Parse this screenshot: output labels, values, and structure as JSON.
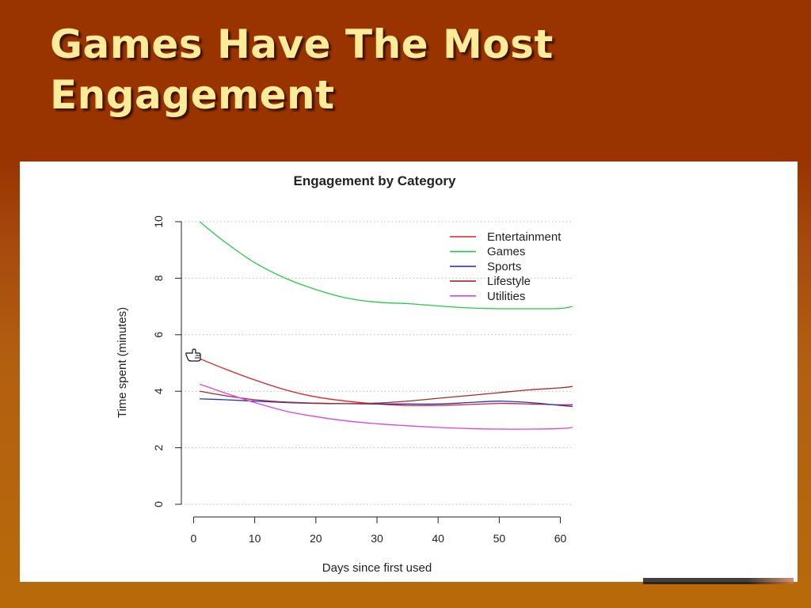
{
  "slide": {
    "title_line1": "Games Have The Most",
    "title_line2": "Engagement"
  },
  "colors": {
    "background": "#993300",
    "title": "#ffeb99",
    "panel": "#ffffff"
  },
  "chart_data": {
    "type": "line",
    "title": "Engagement by Category",
    "xlabel": "Days since first used",
    "ylabel": "Time spent (minutes)",
    "xlim": [
      -2,
      62
    ],
    "ylim": [
      0,
      10
    ],
    "xticks": [
      0,
      10,
      20,
      30,
      40,
      50,
      60
    ],
    "yticks": [
      0,
      2,
      4,
      6,
      8,
      10
    ],
    "grid": "horizontal dotted",
    "legend_position": "top-right",
    "x": [
      1,
      5,
      10,
      15,
      20,
      25,
      30,
      35,
      40,
      45,
      50,
      55,
      60,
      62
    ],
    "series": [
      {
        "name": "Entertainment",
        "color": "#dd2222",
        "values": [
          5.15,
          4.8,
          4.4,
          4.05,
          3.8,
          3.65,
          3.55,
          3.5,
          3.5,
          3.53,
          3.57,
          3.55,
          3.52,
          3.52
        ]
      },
      {
        "name": "Games",
        "color": "#22cc44",
        "values": [
          10.0,
          9.3,
          8.55,
          8.0,
          7.6,
          7.3,
          7.15,
          7.1,
          7.02,
          6.95,
          6.92,
          6.92,
          6.93,
          7.0
        ]
      },
      {
        "name": "Sports",
        "color": "#2233cc",
        "values": [
          3.73,
          3.7,
          3.65,
          3.6,
          3.57,
          3.56,
          3.55,
          3.55,
          3.55,
          3.6,
          3.65,
          3.6,
          3.5,
          3.46
        ]
      },
      {
        "name": "Lifestyle",
        "color": "#a52a2a",
        "values": [
          4.0,
          3.85,
          3.7,
          3.62,
          3.58,
          3.56,
          3.58,
          3.65,
          3.75,
          3.85,
          3.95,
          4.05,
          4.12,
          4.17
        ]
      },
      {
        "name": "Utilities",
        "color": "#dd44dd",
        "values": [
          4.25,
          3.95,
          3.6,
          3.3,
          3.1,
          2.95,
          2.85,
          2.78,
          2.72,
          2.68,
          2.66,
          2.66,
          2.68,
          2.72
        ]
      }
    ]
  }
}
